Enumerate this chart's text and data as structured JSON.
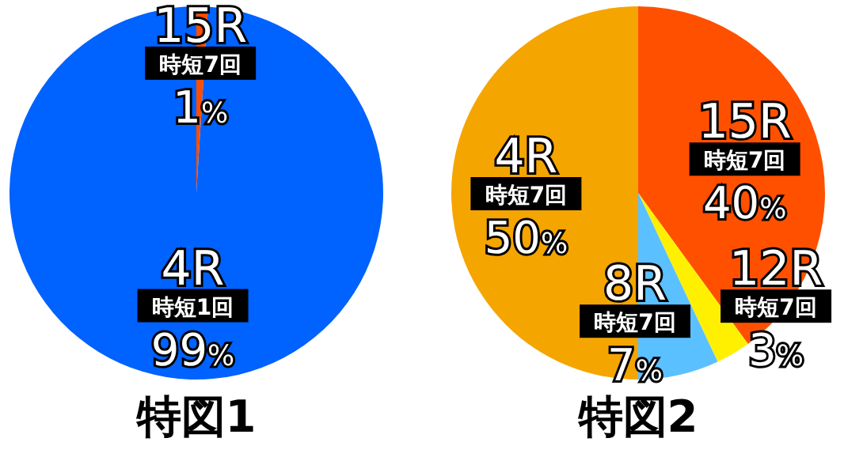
{
  "chart_data": [
    {
      "type": "pie",
      "title": "特図1",
      "categories": [
        "15R\n時短7回",
        "4R\n時短1回"
      ],
      "values": [
        1,
        99
      ],
      "value_labels": [
        "1%",
        "99%"
      ],
      "colors": [
        "#ff4e00",
        "#0062ff"
      ],
      "data_labels": true,
      "legend": false
    },
    {
      "type": "pie",
      "title": "特図2",
      "categories": [
        "15R\n時短7回",
        "12R\n時短7回",
        "8R\n時短7回",
        "4R\n時短7回"
      ],
      "values": [
        40,
        3,
        7,
        50
      ],
      "value_labels": [
        "40%",
        "3%",
        "7%",
        "50%"
      ],
      "colors": [
        "#ff5000",
        "#fff000",
        "#5bc0ff",
        "#f5a500"
      ],
      "data_labels": true,
      "legend": false
    }
  ]
}
